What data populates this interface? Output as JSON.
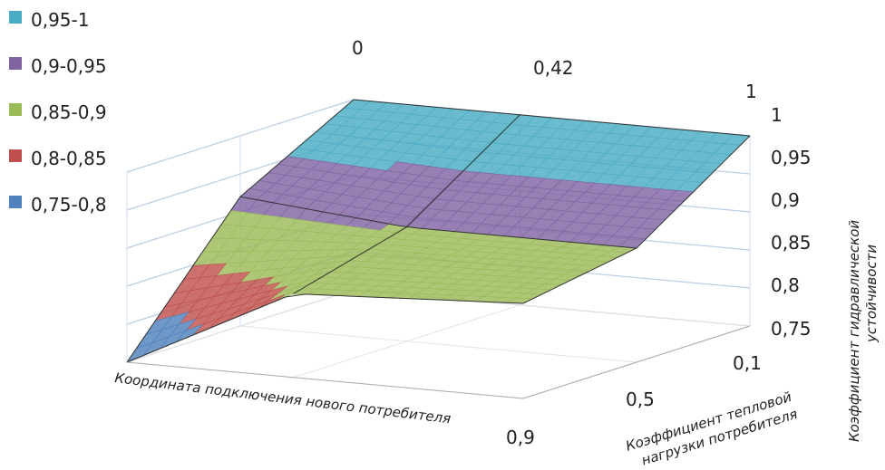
{
  "chart_data": {
    "type": "surface",
    "legend": {
      "placement": "left",
      "entries": [
        {
          "label": "0,95-1",
          "color": "#4aacc5"
        },
        {
          "label": "0,9-0,95",
          "color": "#8064a2"
        },
        {
          "label": "0,85-0,9",
          "color": "#9bbb59"
        },
        {
          "label": "0,8-0,85",
          "color": "#c0504d"
        },
        {
          "label": "0,75-0,8",
          "color": "#4f81bd"
        }
      ]
    },
    "x_axis": {
      "label": "Координата подключения нового потребителя",
      "ticks": [
        "0",
        "0,42",
        "1"
      ]
    },
    "depth_axis": {
      "label_lines": [
        "Коэффициент тепловой",
        "нагрузки потребителя"
      ],
      "ticks": [
        "0,1",
        "0,5",
        "0,9"
      ]
    },
    "z_axis": {
      "label_lines": [
        "Коэффициент гидравлической",
        "устойчивости"
      ],
      "ticks": [
        "0,75",
        "0,8",
        "0,85",
        "0,9",
        "0,95",
        "1"
      ],
      "range": [
        0.75,
        1.0
      ]
    },
    "surface": {
      "x": [
        0,
        0.42,
        1
      ],
      "depth": [
        0.1,
        0.5,
        0.9
      ],
      "z": [
        [
          1.0,
          1.0,
          1.0
        ],
        [
          0.92,
          0.9,
          0.9
        ],
        [
          0.75,
          0.86,
          0.875
        ]
      ]
    },
    "grid": true
  }
}
